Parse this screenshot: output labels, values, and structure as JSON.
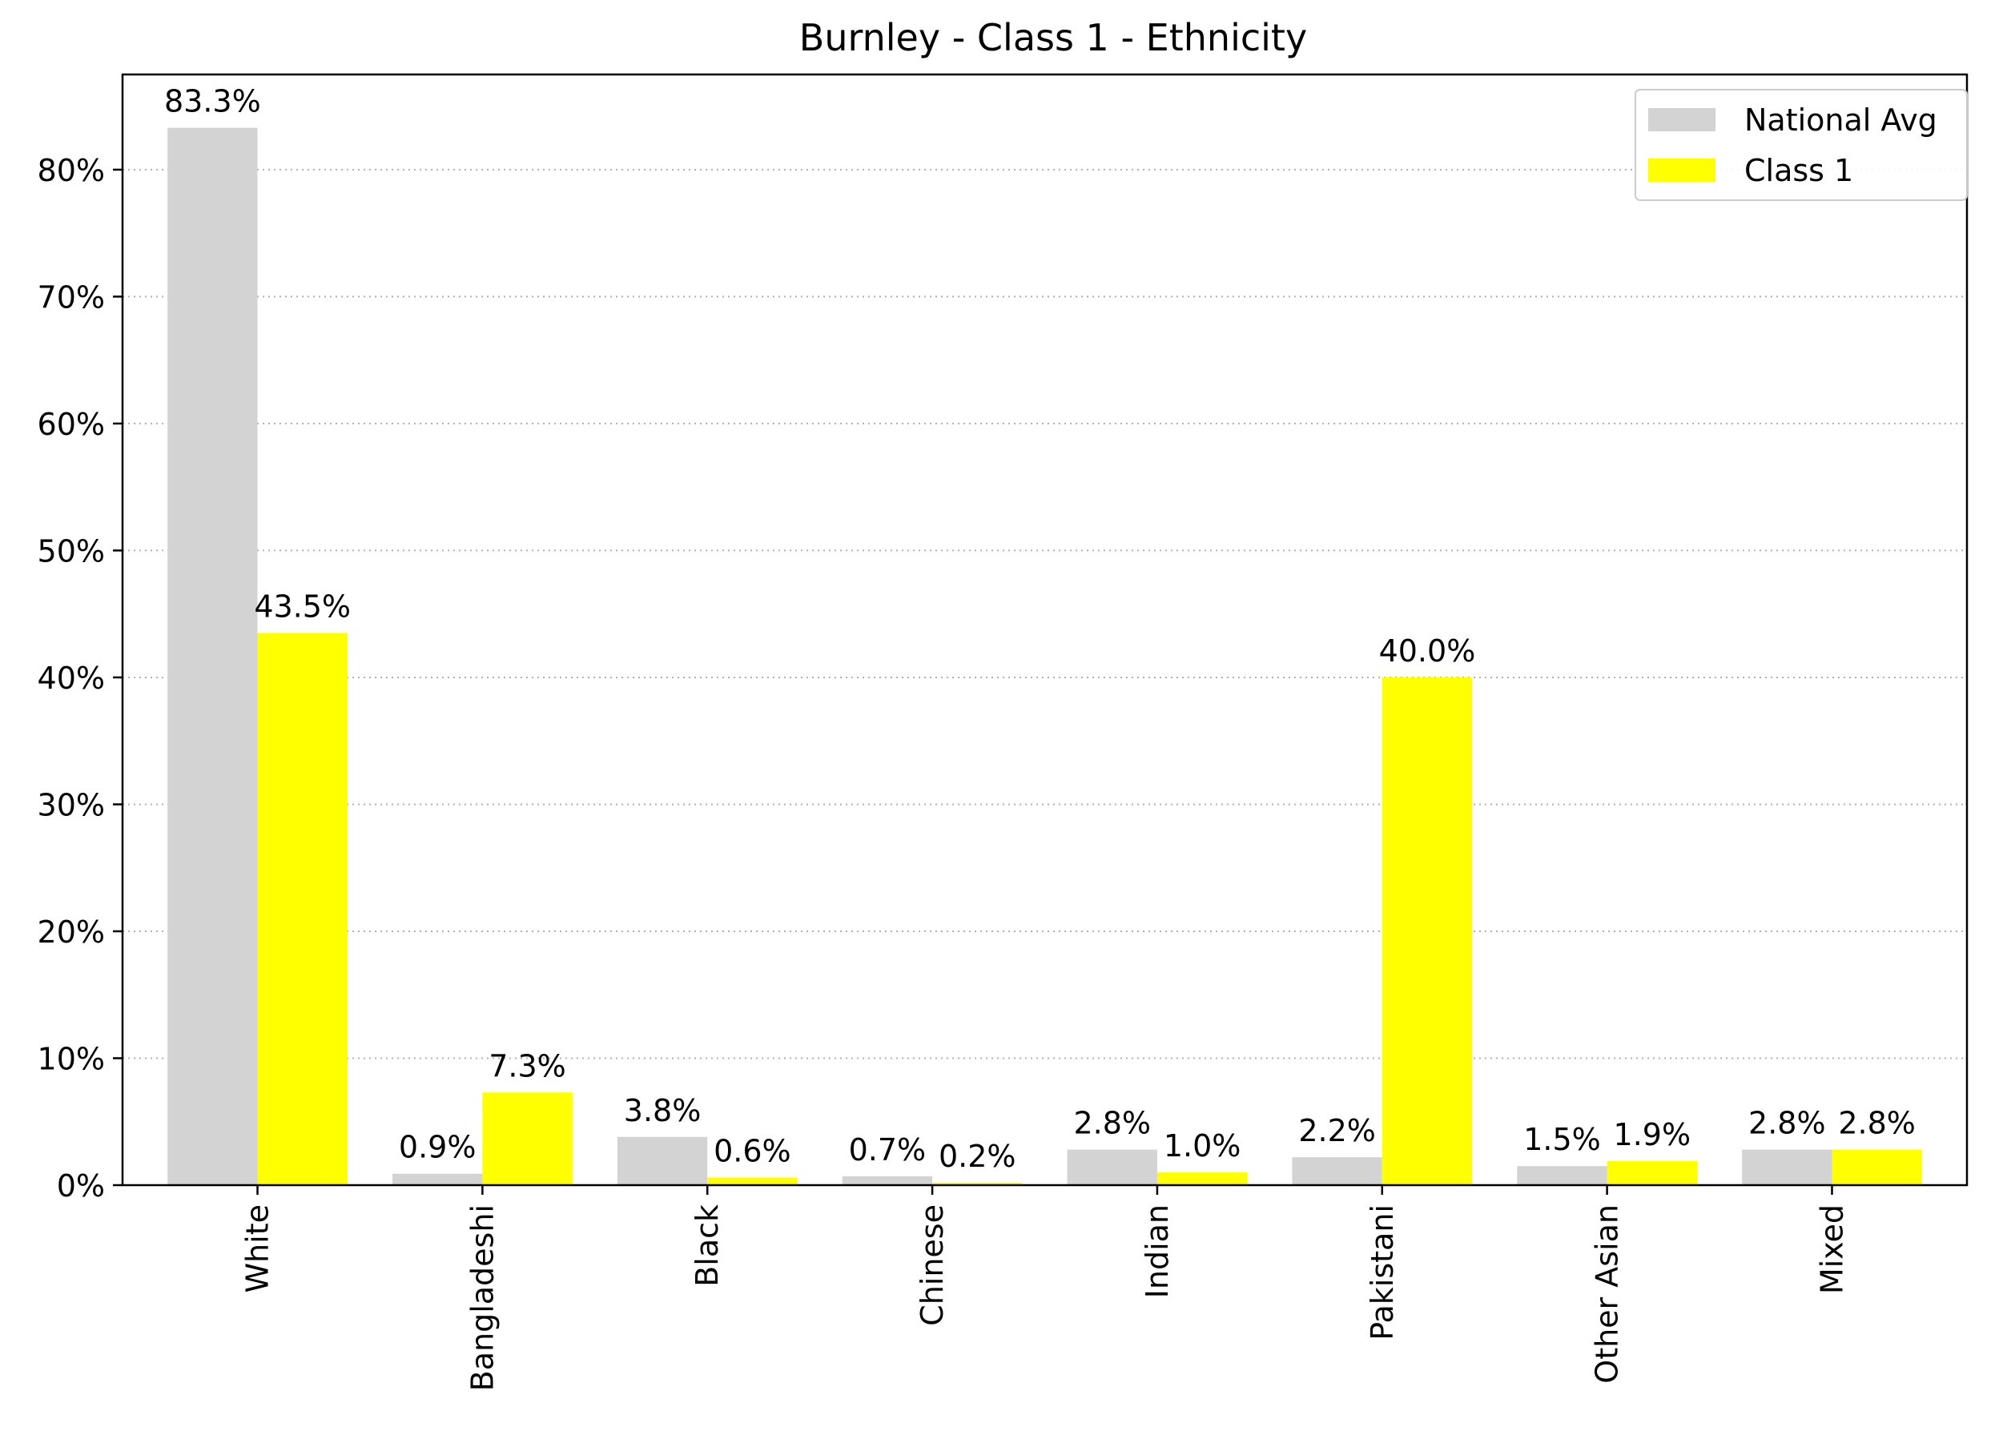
{
  "chart_data": {
    "type": "bar",
    "title": "Burnley - Class 1 - Ethnicity",
    "xlabel": "",
    "ylabel": "",
    "categories": [
      "White",
      "Bangladeshi",
      "Black",
      "Chinese",
      "Indian",
      "Pakistani",
      "Other Asian",
      "Mixed"
    ],
    "series": [
      {
        "name": "National Avg",
        "color": "#d3d3d3",
        "values": [
          83.3,
          0.9,
          3.8,
          0.7,
          2.8,
          2.2,
          1.5,
          2.8
        ],
        "labels": [
          "83.3%",
          "0.9%",
          "3.8%",
          "0.7%",
          "2.8%",
          "2.2%",
          "1.5%",
          "2.8%"
        ]
      },
      {
        "name": "Class 1",
        "color": "#ffff00",
        "values": [
          43.5,
          7.3,
          0.6,
          0.2,
          1.0,
          40.0,
          1.9,
          2.8
        ],
        "labels": [
          "43.5%",
          "7.3%",
          "0.6%",
          "0.2%",
          "1.0%",
          "40.0%",
          "1.9%",
          "2.8%"
        ]
      }
    ],
    "ylim": [
      0,
      87.5
    ],
    "yticks": [
      0,
      10,
      20,
      30,
      40,
      50,
      60,
      70,
      80
    ],
    "ytick_labels": [
      "0%",
      "10%",
      "20%",
      "30%",
      "40%",
      "50%",
      "60%",
      "70%",
      "80%"
    ],
    "grid": "y-dotted",
    "legend_position": "top-right"
  }
}
